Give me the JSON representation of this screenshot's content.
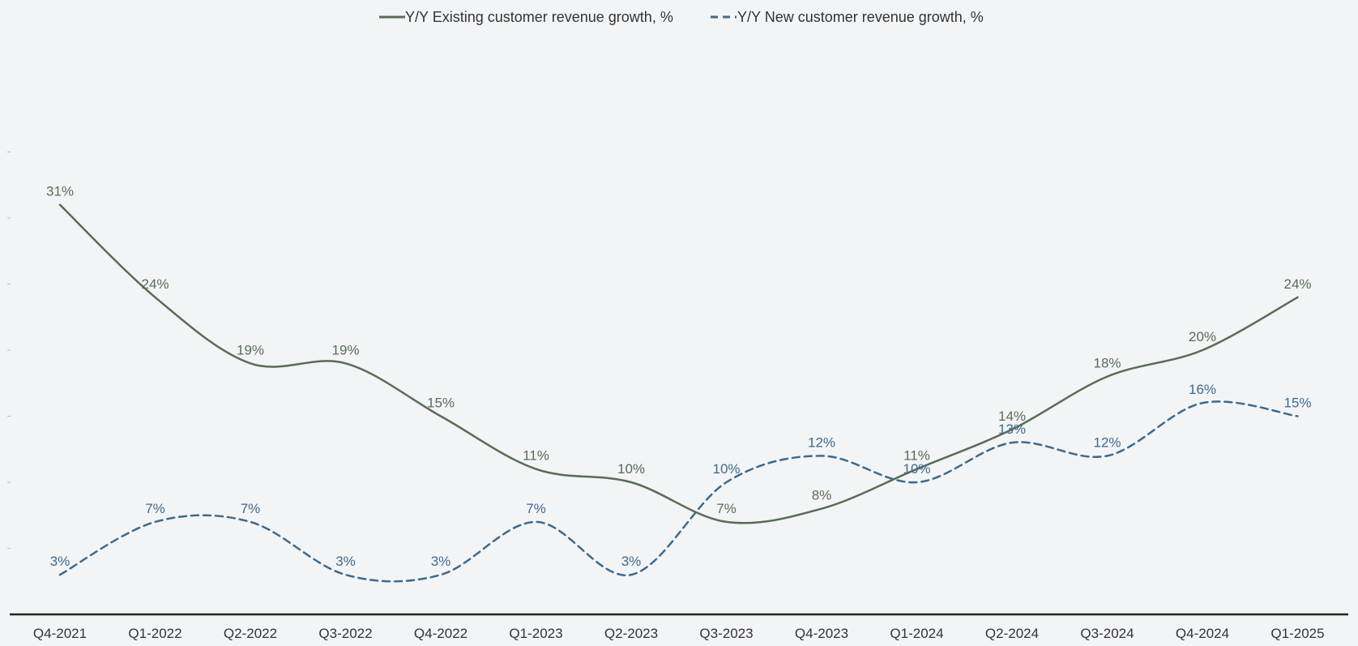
{
  "chart_data": {
    "type": "line",
    "title": "",
    "xlabel": "",
    "ylabel": "",
    "categories": [
      "Q4-2021",
      "Q1-2022",
      "Q2-2022",
      "Q3-2022",
      "Q4-2022",
      "Q1-2023",
      "Q2-2023",
      "Q3-2023",
      "Q4-2023",
      "Q1-2024",
      "Q2-2024",
      "Q3-2024",
      "Q4-2024",
      "Q1-2025"
    ],
    "ylim": [
      0,
      35
    ],
    "grid": false,
    "legend_position": "top-center",
    "series": [
      {
        "name": "Y/Y Existing customer revenue growth, %",
        "values": [
          31,
          24,
          19,
          19,
          15,
          11,
          10,
          7,
          8,
          11,
          14,
          18,
          20,
          24
        ],
        "labels": [
          "31%",
          "24%",
          "19%",
          "19%",
          "15%",
          "11%",
          "10%",
          "7%",
          "8%",
          "11%",
          "14%",
          "18%",
          "20%",
          "24%"
        ],
        "color": "#5c6b55",
        "style": "solid"
      },
      {
        "name": "Y/Y New customer revenue growth, %",
        "values": [
          3,
          7,
          7,
          3,
          3,
          7,
          3,
          10,
          12,
          10,
          13,
          12,
          16,
          15
        ],
        "labels": [
          "3%",
          "7%",
          "7%",
          "3%",
          "3%",
          "7%",
          "3%",
          "10%",
          "12%",
          "10%",
          "13%",
          "12%",
          "16%",
          "15%"
        ],
        "color": "#3d6a8e",
        "style": "dashed"
      }
    ]
  }
}
